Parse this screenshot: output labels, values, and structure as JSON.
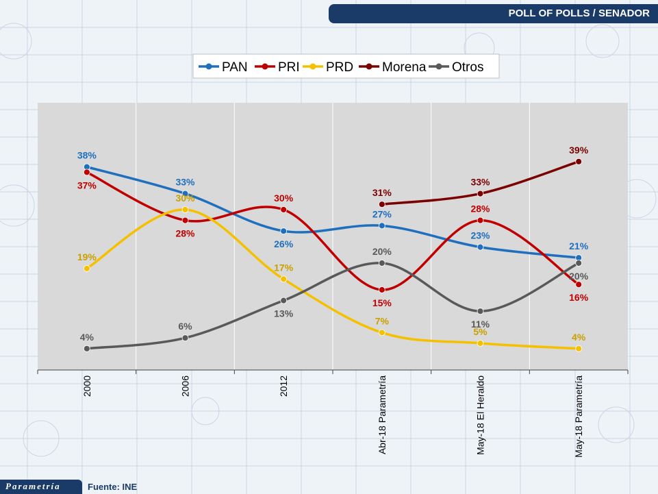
{
  "header": {
    "title": "POLL OF POLLS /  SENADOR"
  },
  "footer": {
    "brand": "Parametría",
    "source": "Fuente: INE"
  },
  "colors": {
    "header_bg": "#1a3a68",
    "plot_bg": "#d9d9d9",
    "PAN": "#1f6fbf",
    "PRI": "#c00000",
    "PRD": "#f5c000",
    "Morena": "#7b0000",
    "Otros": "#595959"
  },
  "chart_data": {
    "type": "line",
    "title": "",
    "xlabel": "",
    "ylabel": "",
    "ylim": [
      0,
      50
    ],
    "grid": "vertical",
    "legend_position": "top-center",
    "categories": [
      "2000",
      "2006",
      "2012",
      "Abr-18 Parametría",
      "May-18 El Heraldo",
      "May-18 Parametría"
    ],
    "series": [
      {
        "name": "PAN",
        "color": "#1f6fbf",
        "values": [
          38,
          33,
          26,
          27,
          23,
          21
        ],
        "labels": [
          "38%",
          "33%",
          "26%",
          "27%",
          "23%",
          "21%"
        ]
      },
      {
        "name": "PRI",
        "color": "#c00000",
        "values": [
          37,
          28,
          30,
          15,
          28,
          16
        ],
        "labels": [
          "37%",
          "28%",
          "30%",
          "15%",
          "28%",
          "16%"
        ]
      },
      {
        "name": "PRD",
        "color": "#f5c000",
        "values": [
          19,
          30,
          17,
          7,
          5,
          4
        ],
        "labels": [
          "19%",
          "30%",
          "17%",
          "7%",
          "5%",
          "4%"
        ]
      },
      {
        "name": "Morena",
        "color": "#7b0000",
        "values": [
          null,
          null,
          null,
          31,
          33,
          39
        ],
        "labels": [
          "",
          "",
          "",
          "31%",
          "33%",
          "39%"
        ]
      },
      {
        "name": "Otros",
        "color": "#595959",
        "values": [
          4,
          6,
          13,
          20,
          11,
          20
        ],
        "labels": [
          "4%",
          "6%",
          "13%",
          "20%",
          "11%",
          "20%"
        ]
      }
    ]
  }
}
